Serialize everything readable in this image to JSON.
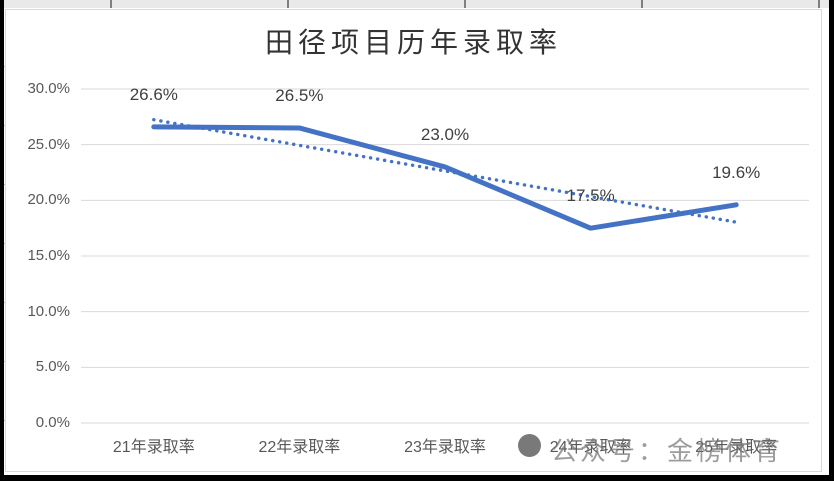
{
  "chart_data": {
    "type": "line",
    "title": "田径项目历年录取率",
    "categories": [
      "21年录取率",
      "22年录取率",
      "23年录取率",
      "24年录取率",
      "25年录取率"
    ],
    "series": [
      {
        "name": "录取率",
        "values": [
          26.6,
          26.5,
          23.0,
          17.5,
          19.6
        ],
        "style": "solid"
      },
      {
        "name": "线性趋势线",
        "style": "dotted-linear-trendline"
      }
    ],
    "data_labels": [
      "26.6%",
      "26.5%",
      "23.0%",
      "17.5%",
      "19.6%"
    ],
    "y_axis": {
      "tick_labels": [
        "30.0%",
        "25.0%",
        "20.0%",
        "15.0%",
        "10.0%",
        "5.0%",
        "0.0%"
      ],
      "tick_values": [
        30,
        25,
        20,
        15,
        10,
        5,
        0
      ]
    },
    "ylim": [
      0,
      30
    ],
    "grid": true,
    "legend": false,
    "colors": {
      "line": "#4472C4",
      "trendline": "#4472C4",
      "gridline": "#D9D9D9",
      "axis_text": "#595959",
      "data_label_text": "#404040",
      "title_text": "#333333",
      "chart_border": "#D8D8D8"
    }
  },
  "watermark": {
    "text": "公众号：金榜体育"
  }
}
